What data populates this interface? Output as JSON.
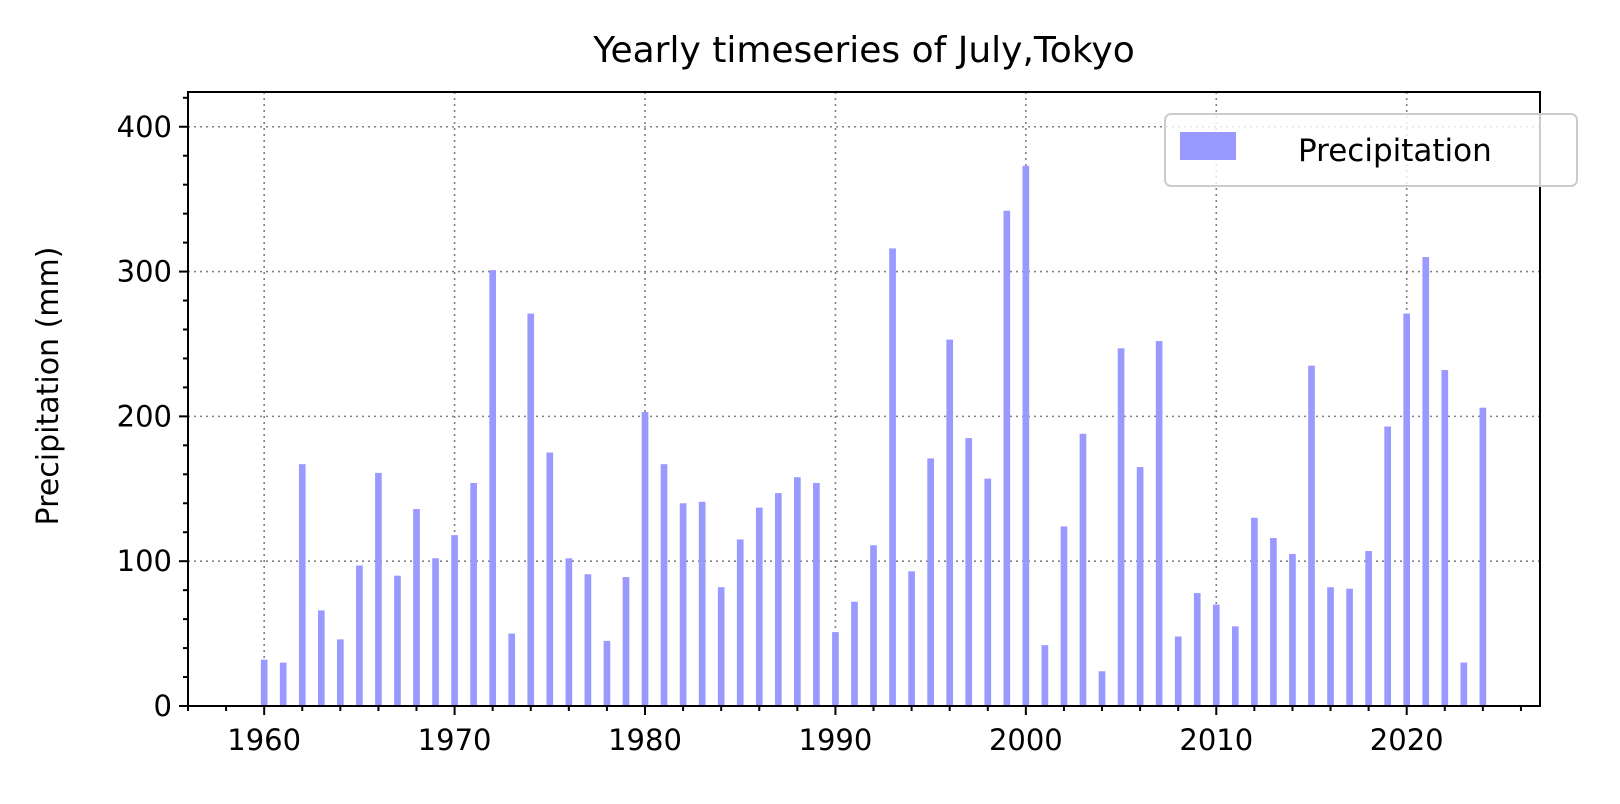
{
  "chart_data": {
    "type": "bar",
    "title": "Yearly timeseries of July,Tokyo",
    "xlabel": "",
    "ylabel": "Precipitation (mm)",
    "xlim": [
      1956,
      2027
    ],
    "ylim": [
      0,
      424
    ],
    "x_ticks": [
      1960,
      1970,
      1980,
      1990,
      2000,
      2010,
      2020
    ],
    "y_ticks": [
      0,
      100,
      200,
      300,
      400
    ],
    "grid": true,
    "legend": {
      "position": "top-right",
      "entries": [
        "Precipitation"
      ]
    },
    "series": [
      {
        "name": "Precipitation",
        "color": "#9999ff",
        "x": [
          1960,
          1961,
          1962,
          1963,
          1964,
          1965,
          1966,
          1967,
          1968,
          1969,
          1970,
          1971,
          1972,
          1973,
          1974,
          1975,
          1976,
          1977,
          1978,
          1979,
          1980,
          1981,
          1982,
          1983,
          1984,
          1985,
          1986,
          1987,
          1988,
          1989,
          1990,
          1991,
          1992,
          1993,
          1994,
          1995,
          1996,
          1997,
          1998,
          1999,
          2000,
          2001,
          2002,
          2003,
          2004,
          2005,
          2006,
          2007,
          2008,
          2009,
          2010,
          2011,
          2012,
          2013,
          2014,
          2015,
          2016,
          2017,
          2018,
          2019,
          2020,
          2021,
          2022,
          2023,
          2024
        ],
        "values": [
          32,
          30,
          167,
          66,
          46,
          97,
          161,
          90,
          136,
          102,
          118,
          154,
          301,
          50,
          271,
          175,
          102,
          91,
          45,
          89,
          203,
          167,
          140,
          141,
          82,
          115,
          137,
          147,
          158,
          154,
          51,
          72,
          111,
          316,
          93,
          171,
          253,
          185,
          157,
          342,
          373,
          42,
          124,
          188,
          24,
          247,
          165,
          252,
          48,
          78,
          70,
          55,
          130,
          116,
          105,
          235,
          82,
          81,
          107,
          193,
          271,
          310,
          232,
          30,
          206
        ]
      }
    ]
  }
}
